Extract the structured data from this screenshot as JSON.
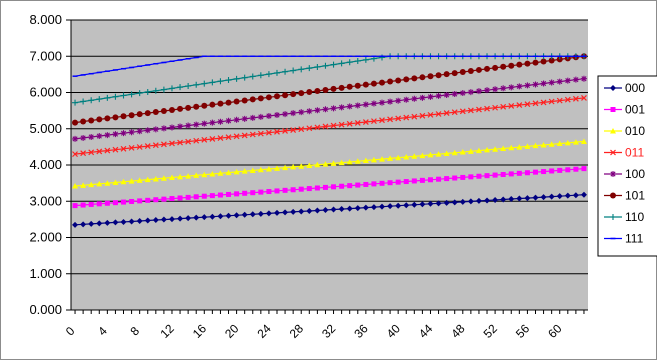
{
  "chart_data": {
    "type": "line",
    "title": "",
    "xlabel": "",
    "ylabel": "",
    "x_range": [
      0,
      63
    ],
    "ylim": [
      0,
      8
    ],
    "y_ticks": [
      "0.000",
      "1.000",
      "2.000",
      "3.000",
      "4.000",
      "5.000",
      "6.000",
      "7.000",
      "8.000"
    ],
    "x_ticks": [
      "0",
      "4",
      "8",
      "12",
      "16",
      "20",
      "24",
      "28",
      "32",
      "36",
      "40",
      "44",
      "48",
      "52",
      "56",
      "60"
    ],
    "grid": "horizontal",
    "plot_background": "#c0c0c0",
    "legend_position": "right",
    "series": [
      {
        "name": "000",
        "color": "#000080",
        "marker": "diamond",
        "start": 2.35,
        "end": 3.18
      },
      {
        "name": "001",
        "color": "#ff00ff",
        "marker": "square",
        "start": 2.88,
        "end": 3.9
      },
      {
        "name": "010",
        "color": "#ffff00",
        "marker": "triangle",
        "start": 3.42,
        "end": 4.65
      },
      {
        "name": "011",
        "color": "#ff2020",
        "marker": "cross",
        "start": 4.3,
        "end": 5.85
      },
      {
        "name": "100",
        "color": "#800080",
        "marker": "star",
        "start": 4.72,
        "end": 6.38
      },
      {
        "name": "101",
        "color": "#800000",
        "marker": "circle",
        "start": 5.17,
        "end": 7.0
      },
      {
        "name": "110",
        "color": "#008080",
        "marker": "plus",
        "start": 5.72,
        "end": 7.0,
        "saturates_at": 39
      },
      {
        "name": "111",
        "color": "#0000ff",
        "marker": "dash",
        "start": 6.45,
        "end": 7.0,
        "saturates_at": 16
      }
    ]
  }
}
